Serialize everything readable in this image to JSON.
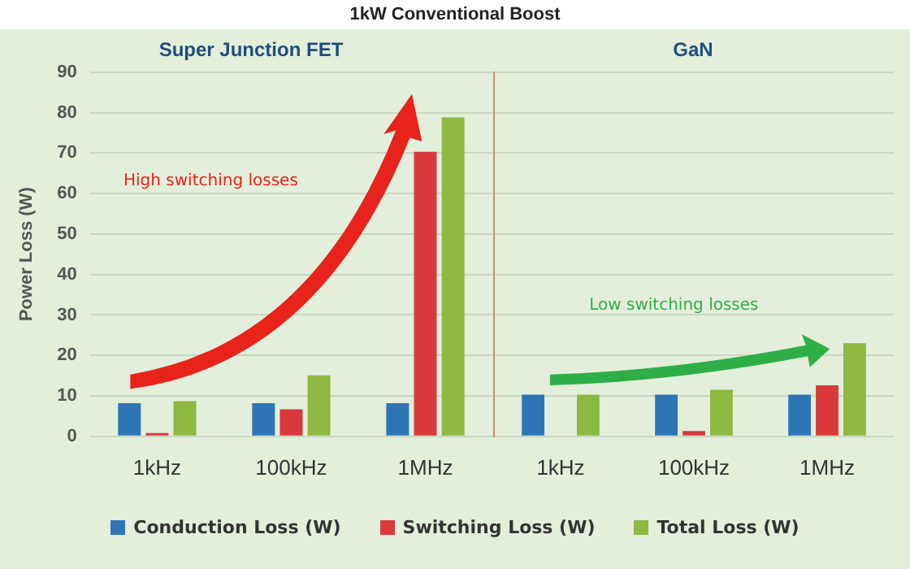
{
  "chart_data": [
    {
      "type": "bar",
      "title": "Super Junction FET",
      "ylabel": "Power Loss (W)",
      "categories": [
        "1kHz",
        "100kHz",
        "1MHz"
      ],
      "series": [
        {
          "name": "Conduction Loss (W)",
          "color": "#2e75b6",
          "values": [
            8.2,
            8.2,
            8.2
          ]
        },
        {
          "name": "Switching Loss (W)",
          "color": "#d9393b",
          "values": [
            0.8,
            6.7,
            70.3
          ]
        },
        {
          "name": "Total Loss (W)",
          "color": "#8db842",
          "values": [
            8.7,
            15.1,
            78.8
          ]
        }
      ],
      "ylim": [
        0,
        90
      ],
      "yticks": [
        0,
        10,
        20,
        30,
        40,
        50,
        60,
        70,
        80,
        90
      ],
      "grid": "y",
      "legend": "bottom",
      "annotations": [
        "1kW Conventional Boost",
        "High switching losses"
      ]
    },
    {
      "type": "bar",
      "title": "GaN",
      "categories": [
        "1kHz",
        "100kHz",
        "1MHz"
      ],
      "series": [
        {
          "color": "#2e75b6",
          "values": [
            10.3,
            10.3,
            10.3
          ]
        },
        {
          "color": "#d9393b",
          "values": [
            null,
            1.3,
            12.6
          ]
        },
        {
          "color": "#8db842",
          "values": [
            10.3,
            11.5,
            23
          ]
        }
      ],
      "ylim": [
        0,
        90
      ],
      "yticks": [
        0,
        10,
        20,
        30,
        40,
        50,
        60,
        70,
        80,
        90
      ],
      "grid": "y",
      "tick_labels": "x",
      "annotations": [
        "Low switching losses"
      ]
    }
  ]
}
